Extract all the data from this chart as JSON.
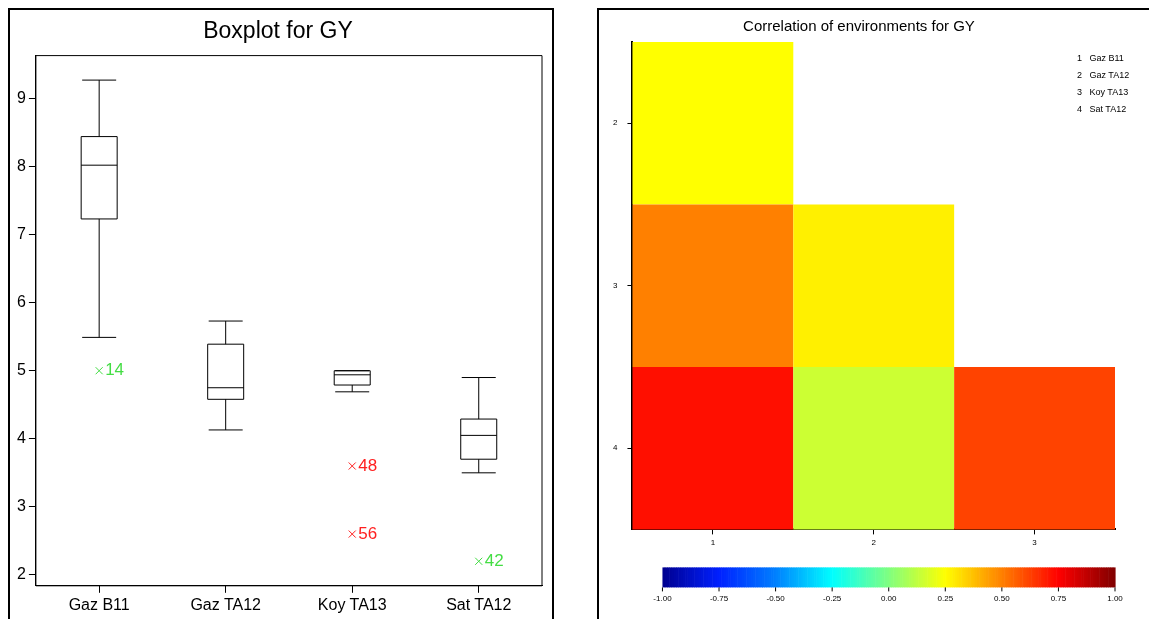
{
  "chart_data": [
    {
      "type": "box",
      "title": "Boxplot for GY",
      "categories": [
        "Gaz B11",
        "Gaz TA12",
        "Koy TA13",
        "Sat TA12"
      ],
      "boxes": [
        {
          "low": 5.49,
          "q1": 7.23,
          "median": 8.02,
          "q3": 8.44,
          "high": 9.27
        },
        {
          "low": 4.13,
          "q1": 4.58,
          "median": 4.75,
          "q3": 5.39,
          "high": 5.73
        },
        {
          "low": 4.69,
          "q1": 4.79,
          "median": 4.94,
          "q3": 5.0,
          "high": 5.0
        },
        {
          "low": 3.5,
          "q1": 3.7,
          "median": 4.05,
          "q3": 4.29,
          "high": 4.9
        }
      ],
      "series": [
        {
          "type": "scatter",
          "color": "#44dd44",
          "x": [
            "Gaz B11",
            "Sat TA12"
          ],
          "values": [
            5.0,
            2.2
          ]
        },
        {
          "type": "scatter",
          "color": "#ff2020",
          "x": [
            "Koy TA13",
            "Koy TA13"
          ],
          "values": [
            3.6,
            2.6
          ]
        }
      ],
      "annotations": [
        {
          "text": "14",
          "x": "Gaz B11",
          "y": 5.0
        },
        {
          "text": "42",
          "x": "Sat TA12",
          "y": 2.2
        },
        {
          "text": "48",
          "x": "Koy TA13",
          "y": 3.6
        },
        {
          "text": "56",
          "x": "Koy TA13",
          "y": 2.6
        }
      ],
      "marker": "cross",
      "ylim": [
        1.84,
        9.63
      ],
      "yticks": [
        2,
        3,
        4,
        5,
        6,
        7,
        8,
        9
      ],
      "grid": false,
      "legend": false
    },
    {
      "type": "heatmap",
      "title": "Correlation of environments for GY",
      "categories": [
        "1",
        "2",
        "3"
      ],
      "y_categories": [
        "2",
        "3",
        "4"
      ],
      "cells": [
        [
          0.25,
          null,
          null
        ],
        [
          0.5,
          0.28,
          null
        ],
        [
          0.72,
          0.15,
          0.62
        ]
      ],
      "clim": [
        -1,
        1
      ],
      "cticks": [
        {
          "value": -1,
          "label": "-1.00"
        },
        {
          "value": -0.75,
          "label": "-0.75"
        },
        {
          "value": -0.5,
          "label": "-0.50"
        },
        {
          "value": -0.25,
          "label": "-0.25"
        },
        {
          "value": 0,
          "label": "0.00"
        },
        {
          "value": 0.25,
          "label": "0.25"
        },
        {
          "value": 0.5,
          "label": "0.50"
        },
        {
          "value": 0.75,
          "label": "0.75"
        },
        {
          "value": 1,
          "label": "1.00"
        }
      ],
      "annotations": [
        "1   Gaz B11",
        "2   Gaz TA12",
        "3   Koy TA13",
        "4   Sat TA12"
      ]
    }
  ]
}
